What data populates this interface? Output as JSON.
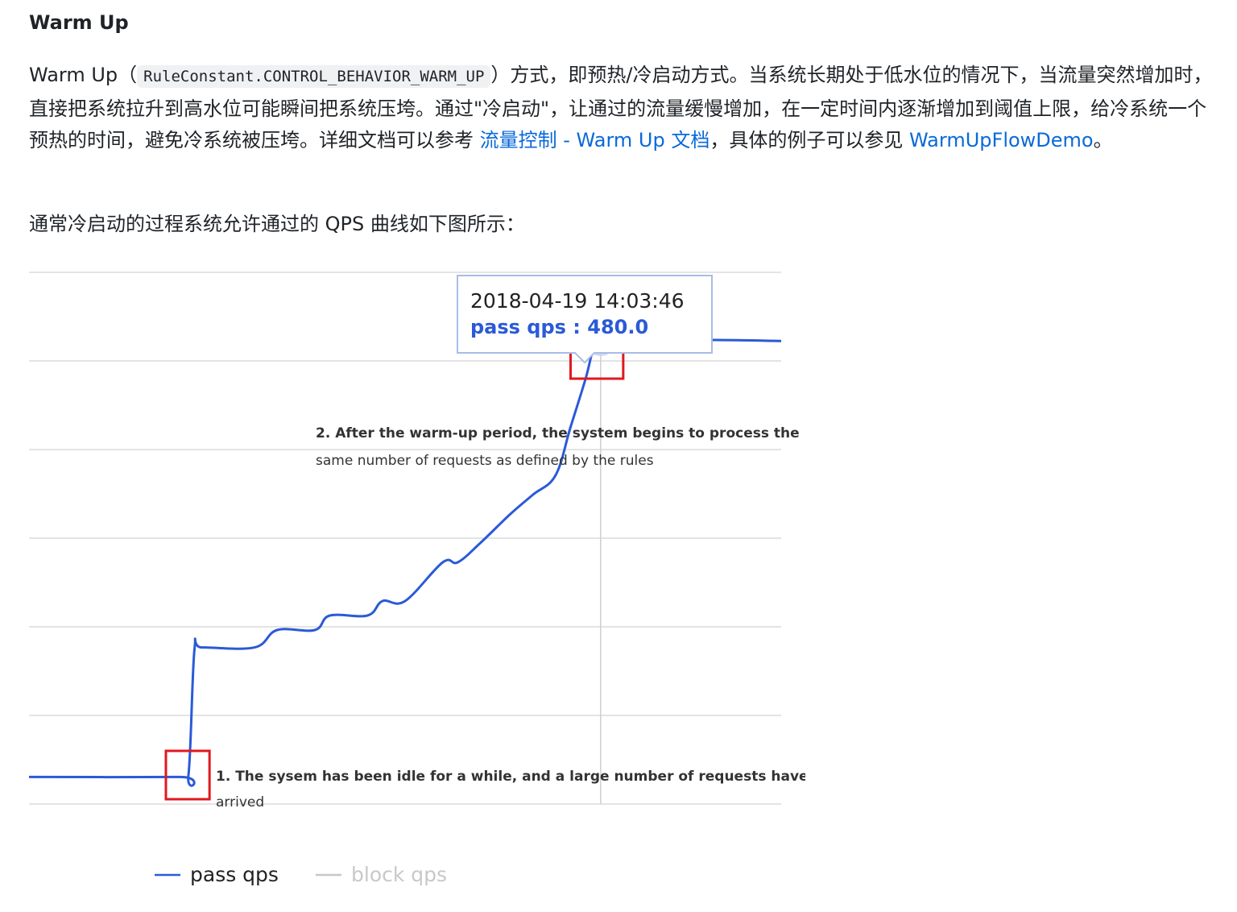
{
  "section": {
    "title": "Warm Up",
    "para1": {
      "prefix": "Warm Up（",
      "code": "RuleConstant.CONTROL_BEHAVIOR_WARM_UP",
      "middle": "）方式，即预热/冷启动方式。当系统长期处于低水位的情况下，当流量突然增加时，直接把系统拉升到高水位可能瞬间把系统压垮。通过\"冷启动\"，让通过的流量缓慢增加，在一定时间内逐渐增加到阈值上限，给冷系统一个预热的时间，避免冷系统被压垮。详细文档可以参考 ",
      "link1": "流量控制 - Warm Up 文档",
      "connector": "，具体的例子可以参见 ",
      "link2": "WarmUpFlowDemo",
      "end": "。"
    },
    "para2": "通常冷启动的过程系统允许通过的 QPS 曲线如下图所示："
  },
  "chart_data": {
    "type": "line",
    "title": "",
    "xlabel": "",
    "ylabel": "",
    "grid": true,
    "legend_position": "bottom-left",
    "series": [
      {
        "name": "pass qps",
        "color": "#2a5ad7",
        "points": [
          [
            0,
            28
          ],
          [
            20,
            28
          ],
          [
            21.2,
            30
          ],
          [
            22,
            160
          ],
          [
            23,
            162
          ],
          [
            30,
            162
          ],
          [
            33,
            180
          ],
          [
            38,
            180
          ],
          [
            40,
            195
          ],
          [
            45,
            195
          ],
          [
            47,
            210
          ],
          [
            50,
            210
          ],
          [
            55,
            250
          ],
          [
            57,
            250
          ],
          [
            60,
            270
          ],
          [
            64,
            300
          ],
          [
            67,
            320
          ],
          [
            70,
            340
          ],
          [
            72,
            390
          ],
          [
            74,
            440
          ],
          [
            75,
            470
          ],
          [
            76,
            480
          ],
          [
            80,
            480
          ],
          [
            85,
            478
          ],
          [
            90,
            480
          ],
          [
            100,
            479
          ]
        ]
      },
      {
        "name": "block qps",
        "color": "#c8c8c8",
        "points": []
      }
    ],
    "ylim": [
      0,
      550
    ],
    "xlim": [
      0,
      100
    ],
    "tooltip": {
      "time": "2018-04-19 14:03:46",
      "value_label": "pass qps : 480.0",
      "x": 76
    },
    "annotations": [
      {
        "line1": "2. After the warm-up period, the system begins to process the",
        "line2": "same number of requests as defined by the rules",
        "box_x_range": [
          72,
          79
        ],
        "box_y_range": [
          440,
          500
        ]
      },
      {
        "line1": "1. The sysem has been idle for a while, and a large number of requests have",
        "line2": "arrived",
        "box_x_range": [
          18.2,
          24
        ],
        "box_y_range": [
          5,
          55
        ]
      }
    ]
  }
}
